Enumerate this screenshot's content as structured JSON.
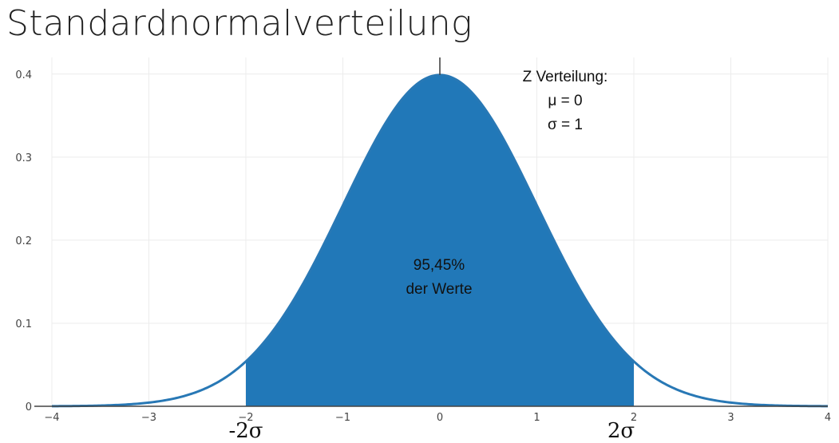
{
  "title": "Standardnormalverteilung",
  "chart_data": {
    "type": "area",
    "distribution": "standard-normal",
    "mu": 0,
    "sigma": 1,
    "xlim": [
      -4,
      4
    ],
    "ylim": [
      0,
      0.42
    ],
    "x_ticks": [
      -4,
      -3,
      -2,
      -1,
      0,
      1,
      2,
      3,
      4
    ],
    "x_tick_labels": [
      "−4",
      "−3",
      "−2",
      "−1",
      "0",
      "1",
      "2",
      "3",
      "4"
    ],
    "y_ticks": [
      0,
      0.1,
      0.2,
      0.3,
      0.4
    ],
    "y_tick_labels": [
      "0",
      "0.1",
      "0.2",
      "0.3",
      "0.4"
    ],
    "shaded_range": [
      -2,
      2
    ],
    "grid": true,
    "line_color": "#2878b5",
    "fill_color": "#2178b8",
    "annotations": {
      "info_lines": [
        "Z Verteilung:",
        "μ = 0",
        "σ = 1"
      ],
      "area_lines": [
        "95,45%",
        "der Werte"
      ],
      "lower_bound_label": "-2σ",
      "upper_bound_label": "2σ"
    }
  }
}
